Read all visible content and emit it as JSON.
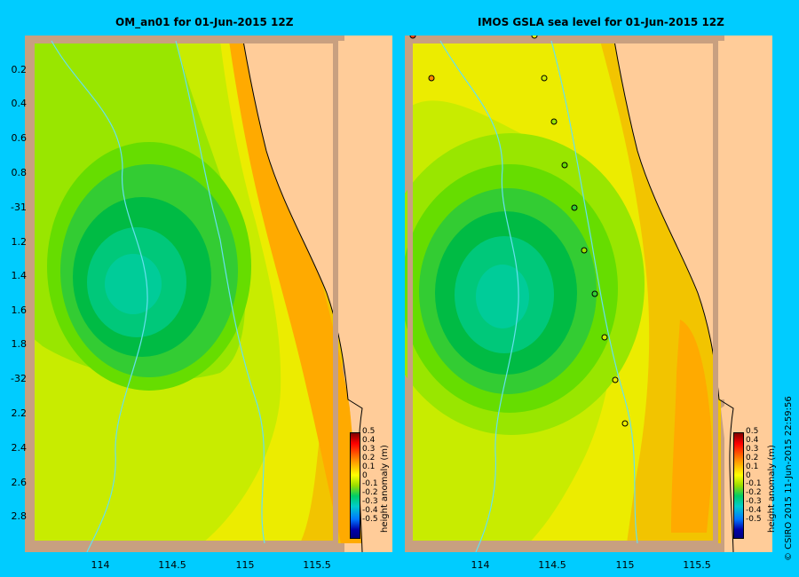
{
  "left_panel": {
    "title": "OM_an01  for 01-Jun-2015 12Z"
  },
  "right_panel": {
    "title": "IMOS  GSLA sea level  for 01-Jun-2015 12Z"
  },
  "lat_labels": [
    "0.2",
    "0.4",
    "0.6",
    "0.8",
    "-31",
    "1.2",
    "1.4",
    "1.6",
    "1.8",
    "-32",
    "2.2",
    "2.4",
    "2.6",
    "2.8"
  ],
  "lon_labels": [
    "114",
    "114.5",
    "115",
    "115.5"
  ],
  "colorbar": {
    "ticks": [
      "0.5",
      "0.4",
      "0.3",
      "0.2",
      "0.1",
      "0",
      "-0.1",
      "-0.2",
      "-0.3",
      "-0.4",
      "-0.5"
    ],
    "unit": "height anomaly (m)",
    "range": [
      -0.5,
      0.5
    ],
    "colors": [
      "#000080",
      "#0000ff",
      "#0077ff",
      "#00cccc",
      "#00cc66",
      "#99dd00",
      "#ffff00",
      "#ffcc00",
      "#ff8800",
      "#ff0000",
      "#800000"
    ]
  },
  "credit": "© CSIRO 2015   11-Jun-2015 22:59:56",
  "palette": {
    "background": "#00ccff",
    "land": "#ffcc99",
    "coast_shelf": "#c8a080",
    "contour_levels": [
      "#ffaa00",
      "#f2c400",
      "#ecec00",
      "#c8ec00",
      "#99e600",
      "#66dd00",
      "#33cc33",
      "#00bb44",
      "#00c87a",
      "#00cc99"
    ]
  }
}
